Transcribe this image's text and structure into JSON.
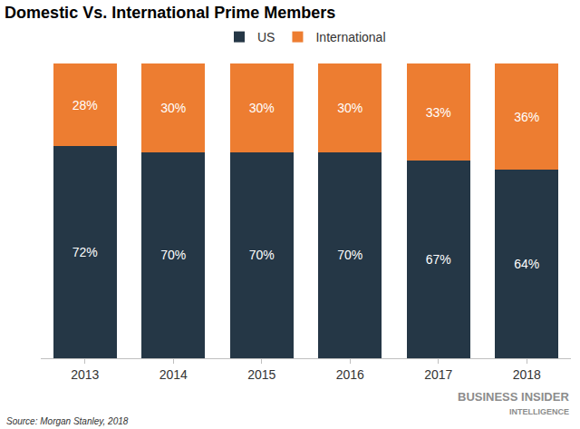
{
  "chart_data": {
    "type": "bar",
    "title": "Domestic Vs. International Prime Members",
    "categories": [
      "2013",
      "2014",
      "2015",
      "2016",
      "2017",
      "2018"
    ],
    "series": [
      {
        "name": "US",
        "color": "#253746",
        "values": [
          72,
          70,
          70,
          70,
          67,
          64
        ],
        "value_labels": [
          "72%",
          "70%",
          "70%",
          "70%",
          "67%",
          "64%"
        ]
      },
      {
        "name": "International",
        "color": "#ed7d31",
        "values": [
          28,
          30,
          30,
          30,
          33,
          36
        ],
        "value_labels": [
          "28%",
          "30%",
          "30%",
          "30%",
          "33%",
          "36%"
        ]
      }
    ],
    "stacked": true,
    "data_labels": true,
    "ylim": [
      0,
      100
    ],
    "tick_labels": "x",
    "grid": false,
    "legend": "top",
    "annotations": [
      "Source: Morgan Stanley, 2018",
      "BUSINESS INSIDER",
      "INTELLIGENCE"
    ]
  }
}
